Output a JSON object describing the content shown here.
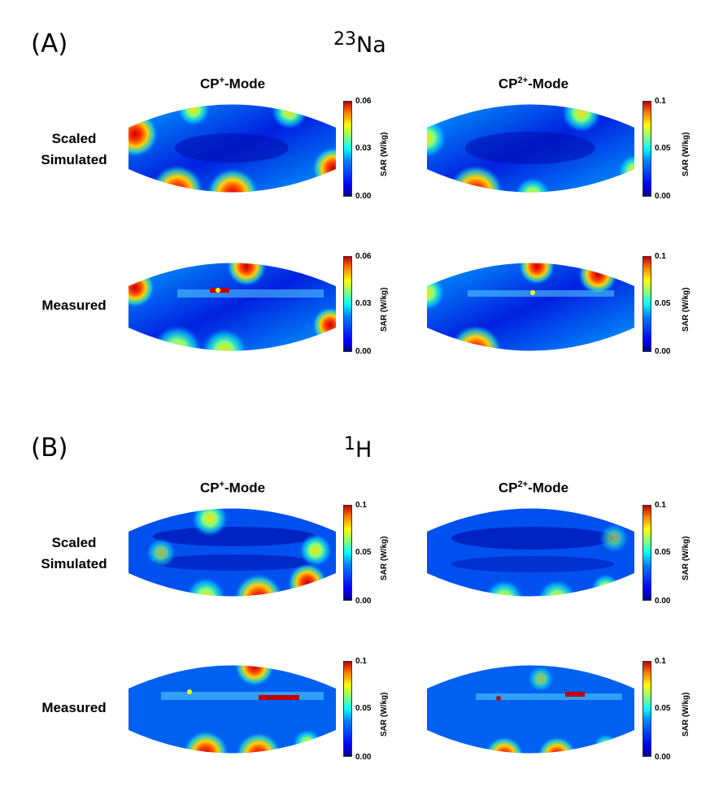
{
  "panels": [
    {
      "label": "(A)",
      "nucleus_sup": "23",
      "nucleus": "Na",
      "modes": [
        {
          "prefix": "CP",
          "sup": "+",
          "suffix": "-Mode",
          "cbar_max": "0.06",
          "cbar_mid": "0.03",
          "cbar_min": "0.00"
        },
        {
          "prefix": "CP",
          "sup": "2+",
          "suffix": "-Mode",
          "cbar_max": "0.1",
          "cbar_mid": "0.05",
          "cbar_min": "0.00"
        }
      ],
      "rows": [
        "Scaled\nSimulated",
        "Measured"
      ]
    },
    {
      "label": "(B)",
      "nucleus_sup": "1",
      "nucleus": "H",
      "modes": [
        {
          "prefix": "CP",
          "sup": "+",
          "suffix": "-Mode",
          "cbar_max": "0.1",
          "cbar_mid": "0.05",
          "cbar_min": "0.00"
        },
        {
          "prefix": "CP",
          "sup": "2+",
          "suffix": "-Mode",
          "cbar_max": "0.1",
          "cbar_mid": "0.05",
          "cbar_min": "0.00"
        }
      ],
      "rows": [
        "Scaled\nSimulated",
        "Measured"
      ]
    }
  ],
  "colorbar_title": "SAR (W/kg)",
  "row_labels": {
    "simulated_line1": "Scaled",
    "simulated_line2": "Simulated",
    "measured": "Measured"
  },
  "colors": {
    "low": "#00008f",
    "mid": "#00ffff",
    "high": "#c00000"
  }
}
